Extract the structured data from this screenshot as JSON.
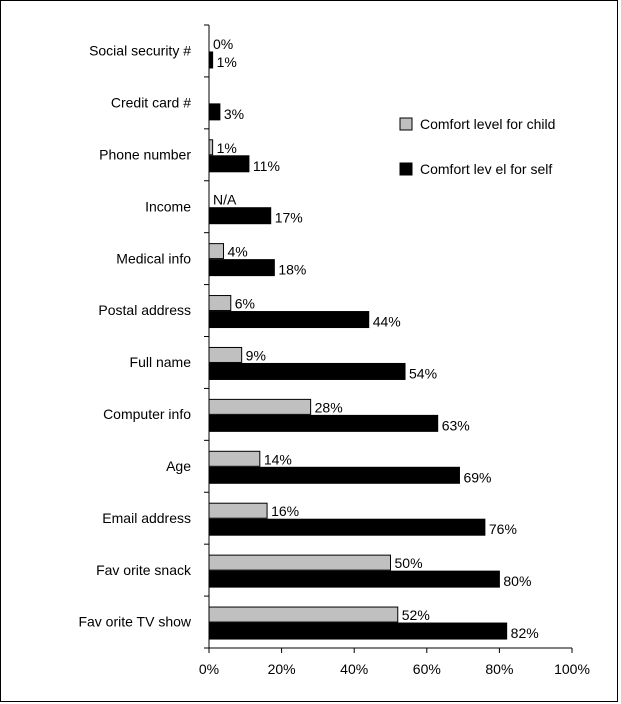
{
  "chart_data": {
    "type": "bar",
    "orientation": "horizontal",
    "categories": [
      "Social security #",
      "Credit card #",
      "Phone number",
      "Income",
      "Medical info",
      "Postal address",
      "Full name",
      "Computer info",
      "Age",
      "Email address",
      "Fav orite snack",
      "Fav orite TV show"
    ],
    "series": [
      {
        "name": "Comfort level for child",
        "color": "#c0c0c0",
        "values": [
          0,
          null,
          1,
          null,
          4,
          6,
          9,
          28,
          14,
          16,
          50,
          52
        ],
        "labels": [
          "0%",
          "",
          "1%",
          "N/A",
          "4%",
          "6%",
          "9%",
          "28%",
          "14%",
          "16%",
          "50%",
          "52%"
        ]
      },
      {
        "name": "Comfort lev el for self",
        "color": "#000000",
        "values": [
          1,
          3,
          11,
          17,
          18,
          44,
          54,
          63,
          69,
          76,
          80,
          82
        ],
        "labels": [
          "1%",
          "3%",
          "11%",
          "17%",
          "18%",
          "44%",
          "54%",
          "63%",
          "69%",
          "76%",
          "80%",
          "82%"
        ]
      }
    ],
    "xlim": [
      0,
      100
    ],
    "xticks": [
      0,
      20,
      40,
      60,
      80,
      100
    ],
    "xtick_labels": [
      "0%",
      "20%",
      "40%",
      "60%",
      "80%",
      "100%"
    ],
    "grid": false,
    "legend": "top-right",
    "title": "",
    "xlabel": "",
    "ylabel": ""
  }
}
